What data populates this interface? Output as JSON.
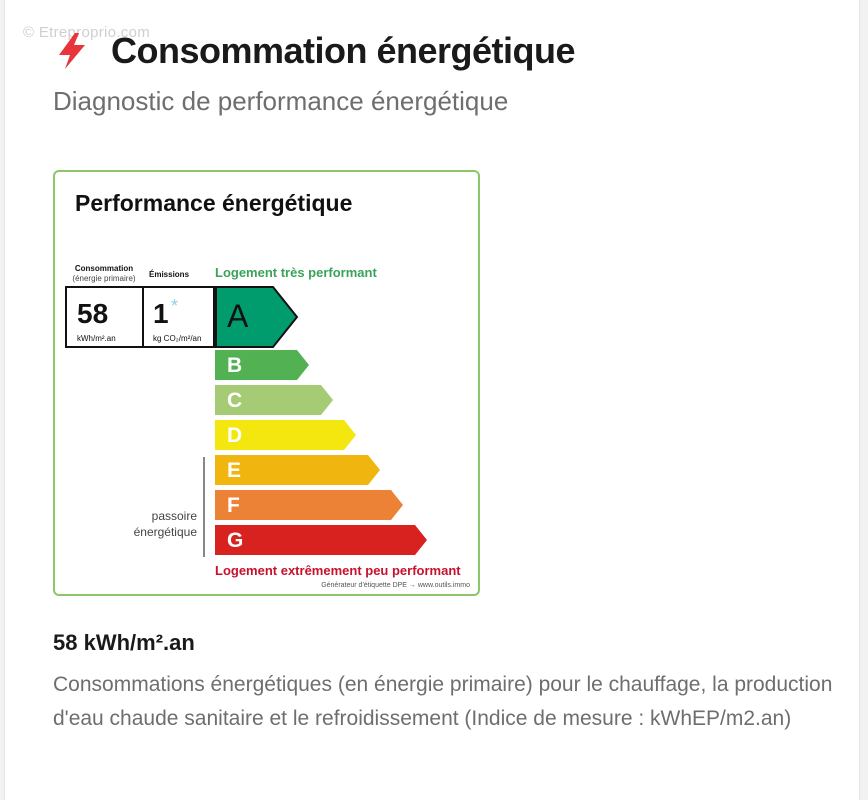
{
  "watermark": "© Etreproprio.com",
  "header": {
    "icon": "lightning-bolt-icon",
    "title": "Consommation énergétique",
    "subtitle": "Diagnostic de performance énergétique"
  },
  "label": {
    "title": "Performance énergétique",
    "consumption_header": "Consommation",
    "consumption_subheader": "(énergie primaire)",
    "emissions_header": "Émissions",
    "top_text": "Logement très performant",
    "bottom_text": "Logement extrêmement peu performant",
    "generator_text": "Générateur d'étiquette DPE → www.outils.immo",
    "consumption_value": "58",
    "consumption_unit": "kWh/m².an",
    "emissions_value": "1",
    "emissions_star": "*",
    "emissions_unit": "kg CO₂/m²/an",
    "current_class": "A",
    "passoire_line1": "passoire",
    "passoire_line2": "énergétique",
    "classes": [
      {
        "letter": "A",
        "color": "#009c6d"
      },
      {
        "letter": "B",
        "color": "#52b153"
      },
      {
        "letter": "C",
        "color": "#a5cc74"
      },
      {
        "letter": "D",
        "color": "#f4e70f"
      },
      {
        "letter": "E",
        "color": "#f0b50f"
      },
      {
        "letter": "F",
        "color": "#eb8235"
      },
      {
        "letter": "G",
        "color": "#d7221f"
      }
    ]
  },
  "summary": {
    "value": "58 kWh/m².an",
    "description": "Consommations énergétiques (en énergie primaire) pour le chauffage, la production d'eau chaude sanitaire et le refroidissement (Indice de mesure : kWhEP/m2.an)"
  }
}
